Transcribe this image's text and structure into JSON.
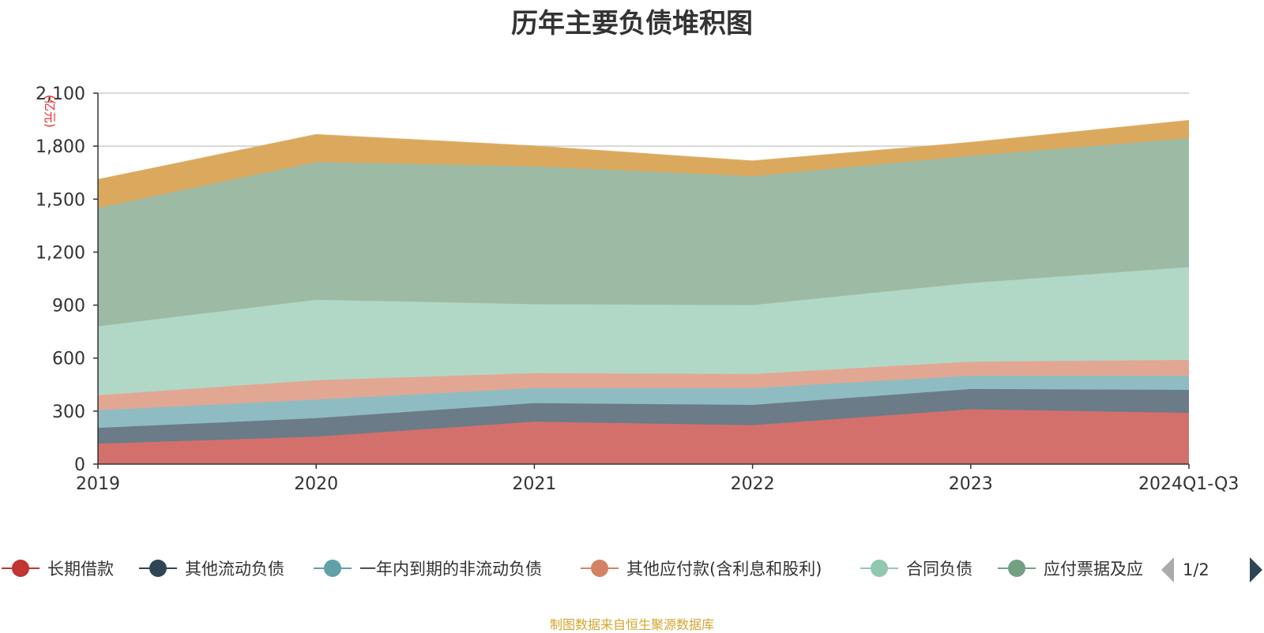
{
  "chart_data": {
    "type": "area",
    "stacked": true,
    "title": "历年主要负债堆积图",
    "unit_label": "(亿元)",
    "categories": [
      "2019",
      "2020",
      "2021",
      "2022",
      "2023",
      "2024Q1-Q3"
    ],
    "ylim": [
      0,
      2100
    ],
    "yticks": [
      "0",
      "300",
      "600",
      "900",
      "1,200",
      "1,500",
      "1,800",
      "2,100"
    ],
    "grid": true,
    "legend_position": "bottom",
    "series": [
      {
        "name": "长期借款",
        "color": "#d4706c",
        "marker": "#c23531",
        "values": [
          115,
          155,
          240,
          220,
          310,
          290
        ]
      },
      {
        "name": "其他流动负债",
        "color": "#6b7b88",
        "marker": "#2f4554",
        "values": [
          90,
          105,
          105,
          115,
          115,
          130
        ]
      },
      {
        "name": "一年内到期的非流动负债",
        "color": "#8fbcc2",
        "marker": "#61a0a8",
        "values": [
          100,
          105,
          85,
          95,
          75,
          80
        ]
      },
      {
        "name": "其他应付款(含利息和股利)",
        "color": "#e1a793",
        "marker": "#d48265",
        "values": [
          85,
          110,
          85,
          80,
          80,
          90
        ]
      },
      {
        "name": "合同负债",
        "color": "#b1d8c6",
        "marker": "#91c7ae",
        "values": [
          390,
          455,
          390,
          390,
          445,
          525
        ]
      },
      {
        "name": "应付票据及应付账款",
        "color": "#9dbaa5",
        "marker": "#749f83",
        "values": [
          670,
          780,
          780,
          730,
          720,
          730
        ]
      },
      {
        "name": "",
        "color": "#dba95e",
        "values": [
          160,
          155,
          115,
          85,
          75,
          100
        ]
      }
    ]
  },
  "legend": {
    "items": [
      {
        "label": "长期借款",
        "color": "#c23531"
      },
      {
        "label": "其他流动负债",
        "color": "#2f4554"
      },
      {
        "label": "一年内到期的非流动负债",
        "color": "#61a0a8"
      },
      {
        "label": "其他应付款(含利息和股利)",
        "color": "#d48265"
      },
      {
        "label": "合同负债",
        "color": "#91c7ae"
      },
      {
        "label": "应付票据及应",
        "color": "#749f83"
      }
    ],
    "page_indicator": "1/2"
  },
  "source_note": "制图数据来自恒生聚源数据库"
}
